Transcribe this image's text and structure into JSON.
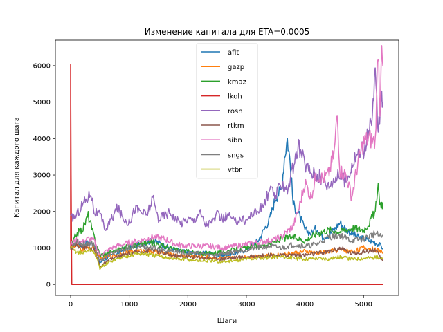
{
  "chart_data": {
    "type": "line",
    "title": "Изменение капитала для ETA=0.0005",
    "xlabel": "Шаги",
    "ylabel": "Капитал для каждого шага",
    "xlim": [
      -260,
      5600
    ],
    "ylim": [
      -300,
      6700
    ],
    "xticks": [
      0,
      1000,
      2000,
      3000,
      4000,
      5000
    ],
    "yticks": [
      0,
      1000,
      2000,
      3000,
      4000,
      5000,
      6000
    ],
    "grid": false,
    "legend_position": "top-center",
    "series": [
      {
        "name": "aflt",
        "color": "#1f77b4",
        "x": [
          0,
          100,
          200,
          300,
          400,
          500,
          600,
          700,
          800,
          900,
          1000,
          1100,
          1200,
          1300,
          1400,
          1500,
          1600,
          1700,
          1800,
          1900,
          2000,
          2100,
          2200,
          2300,
          2400,
          2500,
          2600,
          2700,
          2800,
          2900,
          3000,
          3100,
          3200,
          3300,
          3400,
          3500,
          3600,
          3650,
          3700,
          3750,
          3800,
          3900,
          4000,
          4100,
          4200,
          4300,
          4400,
          4500,
          4600,
          4700,
          4800,
          4900,
          5000,
          5100,
          5200,
          5300,
          5330
        ],
        "y": [
          1000,
          1100,
          1050,
          1150,
          1100,
          600,
          700,
          800,
          850,
          950,
          1000,
          1050,
          1100,
          1150,
          1200,
          1150,
          1050,
          1000,
          950,
          900,
          900,
          850,
          850,
          850,
          850,
          800,
          800,
          800,
          850,
          900,
          950,
          1100,
          1200,
          1500,
          1800,
          2400,
          2600,
          3500,
          4000,
          3300,
          2200,
          1900,
          1500,
          1400,
          1550,
          1300,
          1350,
          1500,
          1700,
          1500,
          1400,
          1300,
          1250,
          1200,
          1150,
          1050,
          1000
        ]
      },
      {
        "name": "gazp",
        "color": "#ff7f0e",
        "x": [
          0,
          100,
          200,
          300,
          400,
          500,
          600,
          700,
          800,
          900,
          1000,
          1200,
          1400,
          1600,
          1800,
          2000,
          2200,
          2400,
          2600,
          2800,
          3000,
          3200,
          3400,
          3600,
          3800,
          4000,
          4200,
          4400,
          4600,
          4800,
          5000,
          5200,
          5300,
          5330
        ],
        "y": [
          1000,
          1050,
          950,
          1000,
          1000,
          700,
          750,
          800,
          820,
          860,
          900,
          920,
          900,
          850,
          800,
          780,
          760,
          740,
          720,
          730,
          760,
          780,
          800,
          820,
          850,
          900,
          850,
          900,
          950,
          900,
          1000,
          950,
          900,
          850
        ]
      },
      {
        "name": "kmaz",
        "color": "#2ca02c",
        "x": [
          0,
          100,
          200,
          300,
          400,
          500,
          600,
          700,
          800,
          900,
          1000,
          1200,
          1400,
          1600,
          1800,
          2000,
          2200,
          2400,
          2600,
          2800,
          3000,
          3200,
          3400,
          3600,
          3800,
          4000,
          4200,
          4400,
          4600,
          4800,
          5000,
          5100,
          5200,
          5250,
          5300,
          5330
        ],
        "y": [
          1000,
          1400,
          1500,
          1900,
          1300,
          800,
          850,
          900,
          950,
          1000,
          1050,
          1100,
          1150,
          1050,
          950,
          900,
          850,
          850,
          900,
          950,
          1000,
          1050,
          1100,
          1250,
          1300,
          1200,
          1400,
          1500,
          1450,
          1550,
          1500,
          1700,
          2000,
          2600,
          2100,
          2250
        ]
      },
      {
        "name": "lkoh",
        "color": "#d62728",
        "x": [
          0,
          0,
          8,
          20,
          5330
        ],
        "y": [
          1000,
          6030,
          3000,
          0,
          0
        ]
      },
      {
        "name": "rosn",
        "color": "#9467bd",
        "x": [
          0,
          100,
          200,
          300,
          350,
          400,
          500,
          600,
          700,
          800,
          900,
          1000,
          1100,
          1200,
          1300,
          1400,
          1500,
          1600,
          1700,
          1800,
          1900,
          2000,
          2100,
          2200,
          2300,
          2400,
          2500,
          2600,
          2700,
          2800,
          2900,
          3000,
          3100,
          3200,
          3300,
          3400,
          3500,
          3600,
          3700,
          3800,
          3900,
          4000,
          4100,
          4200,
          4300,
          4400,
          4500,
          4600,
          4700,
          4800,
          4900,
          5000,
          5100,
          5150,
          5200,
          5250,
          5300,
          5330
        ],
        "y": [
          1800,
          1900,
          2200,
          2400,
          2550,
          2000,
          1900,
          1500,
          1800,
          2100,
          1800,
          1700,
          2100,
          2000,
          1900,
          2350,
          1800,
          1900,
          2000,
          1750,
          1700,
          1800,
          1750,
          2000,
          1650,
          1700,
          1900,
          1800,
          1900,
          1700,
          1800,
          1750,
          1950,
          2000,
          2200,
          2600,
          2400,
          2800,
          2600,
          3200,
          3800,
          3300,
          3100,
          3000,
          2900,
          2700,
          2900,
          3000,
          2800,
          3300,
          3600,
          3700,
          4200,
          4500,
          5900,
          4200,
          5000,
          5000
        ]
      },
      {
        "name": "rtkm",
        "color": "#8c564b",
        "x": [
          0,
          100,
          200,
          300,
          400,
          500,
          600,
          700,
          800,
          900,
          1000,
          1200,
          1400,
          1600,
          1800,
          2000,
          2200,
          2400,
          2600,
          2800,
          3000,
          3200,
          3400,
          3600,
          3800,
          4000,
          4200,
          4400,
          4600,
          4800,
          5000,
          5200,
          5300,
          5330
        ],
        "y": [
          1000,
          1100,
          1000,
          1050,
          950,
          500,
          600,
          700,
          750,
          800,
          850,
          900,
          950,
          850,
          780,
          760,
          740,
          720,
          700,
          740,
          750,
          780,
          800,
          800,
          820,
          800,
          850,
          900,
          1000,
          850,
          900,
          950,
          700,
          650
        ]
      },
      {
        "name": "sibn",
        "color": "#e377c2",
        "x": [
          0,
          100,
          200,
          300,
          400,
          500,
          600,
          700,
          800,
          900,
          1000,
          1200,
          1400,
          1600,
          1800,
          2000,
          2200,
          2400,
          2600,
          2800,
          3000,
          3200,
          3400,
          3600,
          3800,
          3900,
          4000,
          4100,
          4200,
          4300,
          4400,
          4500,
          4550,
          4600,
          4700,
          4800,
          4900,
          5000,
          5100,
          5200,
          5250,
          5280,
          5300,
          5330
        ],
        "y": [
          1100,
          1200,
          1150,
          1250,
          1200,
          800,
          900,
          1000,
          1050,
          1100,
          1150,
          1200,
          1300,
          1250,
          1100,
          1050,
          1050,
          1050,
          1000,
          1050,
          1100,
          1150,
          1200,
          1300,
          1600,
          2100,
          2800,
          2400,
          3000,
          2900,
          3000,
          3600,
          4650,
          3100,
          3000,
          2400,
          3300,
          3900,
          4000,
          3900,
          6600,
          4800,
          6200,
          6000
        ]
      },
      {
        "name": "sngs",
        "color": "#7f7f7f",
        "x": [
          0,
          100,
          200,
          300,
          400,
          500,
          600,
          700,
          800,
          900,
          1000,
          1200,
          1400,
          1600,
          1800,
          2000,
          2200,
          2400,
          2600,
          2800,
          3000,
          3200,
          3400,
          3600,
          3800,
          4000,
          4200,
          4400,
          4600,
          4800,
          5000,
          5200,
          5300,
          5330
        ],
        "y": [
          1000,
          1200,
          1100,
          1150,
          1100,
          650,
          750,
          850,
          900,
          950,
          1000,
          1050,
          1000,
          950,
          900,
          850,
          850,
          800,
          850,
          900,
          950,
          1000,
          1050,
          1000,
          1100,
          1050,
          1100,
          1300,
          1350,
          1200,
          1250,
          1400,
          1300,
          1350
        ]
      },
      {
        "name": "vtbr",
        "color": "#bcbd22",
        "x": [
          0,
          100,
          200,
          300,
          400,
          500,
          600,
          700,
          800,
          900,
          1000,
          1200,
          1400,
          1600,
          1800,
          2000,
          2200,
          2400,
          2600,
          2800,
          3000,
          3200,
          3400,
          3600,
          3800,
          4000,
          4200,
          4400,
          4600,
          4800,
          5000,
          5200,
          5300,
          5330
        ],
        "y": [
          1000,
          900,
          850,
          950,
          900,
          450,
          550,
          650,
          700,
          750,
          800,
          850,
          800,
          750,
          700,
          680,
          660,
          640,
          620,
          650,
          700,
          720,
          740,
          760,
          720,
          700,
          720,
          700,
          750,
          700,
          720,
          740,
          720,
          700
        ]
      }
    ]
  }
}
